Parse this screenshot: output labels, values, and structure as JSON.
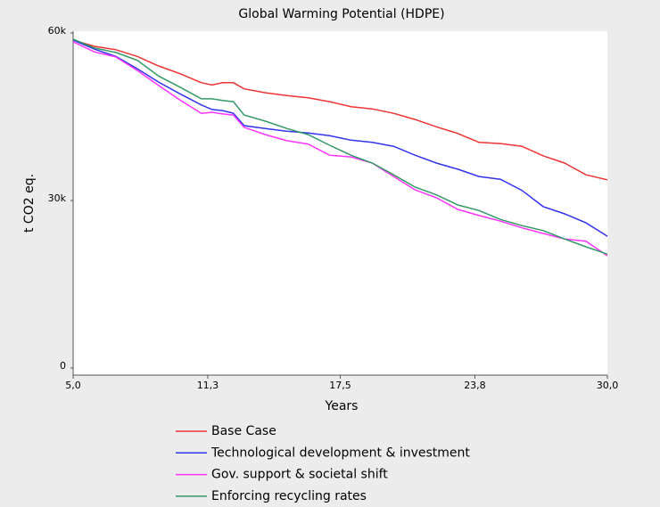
{
  "chart_data": {
    "type": "line",
    "title": "Global Warming Potential (HDPE)",
    "x_label": "Years",
    "y_label": "t CO2 eq.",
    "x": [
      5,
      6,
      7,
      8,
      9,
      10,
      11,
      11.5,
      12,
      12.5,
      13,
      14,
      15,
      16,
      17,
      18,
      19,
      20,
      21,
      22,
      23,
      24,
      25,
      26,
      27,
      28,
      29,
      30
    ],
    "series": [
      {
        "name": "Base Case",
        "color": "#ee3333",
        "values": [
          58700,
          57600,
          57000,
          55800,
          54100,
          52700,
          51100,
          50700,
          51100,
          51100,
          50000,
          49300,
          48800,
          48400,
          47700,
          46800,
          46400,
          45600,
          44500,
          43200,
          42000,
          40400,
          40200,
          39700,
          38000,
          36700,
          34600,
          33700
        ]
      },
      {
        "name": "Technological development & investment",
        "color": "#3333ee",
        "values": [
          58700,
          57100,
          55800,
          53600,
          51200,
          49100,
          47100,
          46300,
          46100,
          45600,
          43400,
          42900,
          42400,
          42100,
          41600,
          40800,
          40400,
          39700,
          38100,
          36700,
          35600,
          34300,
          33800,
          31800,
          28900,
          27600,
          26000,
          23600
        ]
      },
      {
        "name": "Gov. support & societal shift",
        "color": "#ff33ff",
        "values": [
          58400,
          56600,
          55700,
          53300,
          50600,
          48000,
          45600,
          45800,
          45500,
          45300,
          43100,
          41800,
          40700,
          40100,
          38100,
          37800,
          36700,
          34300,
          31900,
          30500,
          28400,
          27300,
          26300,
          25100,
          24100,
          23100,
          22700,
          20100
        ]
      },
      {
        "name": "Enforcing recycling rates",
        "color": "#339966",
        "values": [
          58900,
          57300,
          56500,
          55100,
          52300,
          50300,
          48200,
          48200,
          47900,
          47700,
          45300,
          44200,
          42900,
          41800,
          39900,
          38100,
          36700,
          34600,
          32400,
          31000,
          29200,
          28200,
          26600,
          25500,
          24600,
          23100,
          21700,
          20400
        ]
      }
    ],
    "xlim": [
      5,
      30
    ],
    "xticks": [
      {
        "value": 5,
        "label": "5,0"
      },
      {
        "value": 11.3,
        "label": "11,3"
      },
      {
        "value": 17.5,
        "label": "17,5"
      },
      {
        "value": 23.8,
        "label": "23,8"
      },
      {
        "value": 30,
        "label": "30,0"
      }
    ],
    "ylim": [
      0,
      60000
    ],
    "yticks": [
      0,
      {
        "value": 30000,
        "label": "30k"
      },
      {
        "value": 60000,
        "label": "60k"
      }
    ],
    "grid": false,
    "legend": "bottom"
  }
}
